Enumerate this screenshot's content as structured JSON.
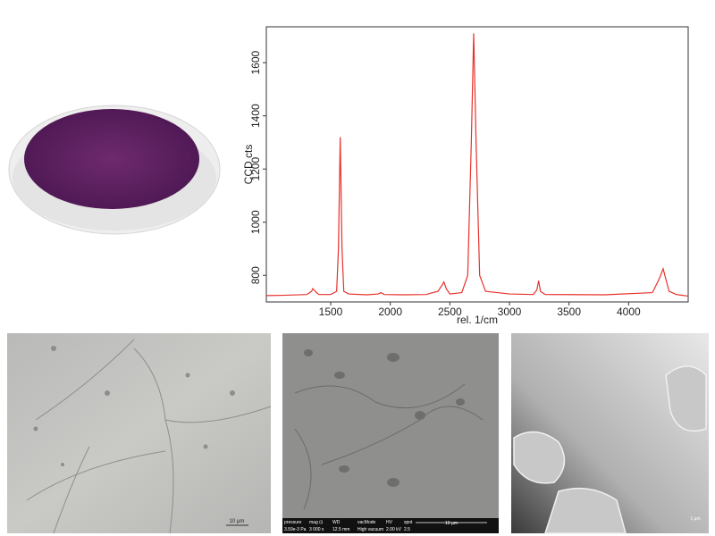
{
  "chart_data": {
    "type": "line",
    "x_label": "rel. 1/cm",
    "y_label": "CCD cts",
    "x": [
      960,
      1100,
      1300,
      1340,
      1350,
      1370,
      1400,
      1500,
      1550,
      1565,
      1580,
      1595,
      1610,
      1650,
      1800,
      1900,
      1920,
      1950,
      2100,
      2300,
      2400,
      2430,
      2450,
      2470,
      2500,
      2600,
      2650,
      2680,
      2700,
      2720,
      2750,
      2800,
      3000,
      3200,
      3230,
      3245,
      3260,
      3300,
      3800,
      4200,
      4260,
      4290,
      4310,
      4340,
      4400,
      4500
    ],
    "values": [
      724,
      725,
      728,
      740,
      750,
      740,
      728,
      728,
      740,
      900,
      1320,
      900,
      740,
      730,
      727,
      730,
      735,
      728,
      727,
      728,
      740,
      760,
      775,
      750,
      730,
      735,
      800,
      1300,
      1710,
      1300,
      800,
      740,
      730,
      728,
      745,
      780,
      740,
      728,
      727,
      735,
      790,
      825,
      790,
      740,
      728,
      722
    ],
    "color": "#e8322c",
    "xlim": [
      960,
      4500
    ],
    "xticks": [
      1500,
      2000,
      2500,
      3000,
      3500,
      4000
    ],
    "ylim": [
      700,
      1735
    ],
    "yticks": [
      800,
      1000,
      1200,
      1400,
      1600
    ]
  },
  "images": {
    "optical": {
      "scale": "10 µm"
    },
    "sem": {
      "info_labels": [
        "pressure",
        "mag ⊡",
        "WD",
        "vacMode",
        "HV",
        "spot"
      ],
      "info_values": [
        "3.59e-3 Pa",
        "3 000 x",
        "12.5 mm",
        "High vacuum",
        "2.00 kV",
        "2.5"
      ],
      "scale": "10 µm"
    },
    "tem": {
      "scale": "1 µm"
    }
  }
}
